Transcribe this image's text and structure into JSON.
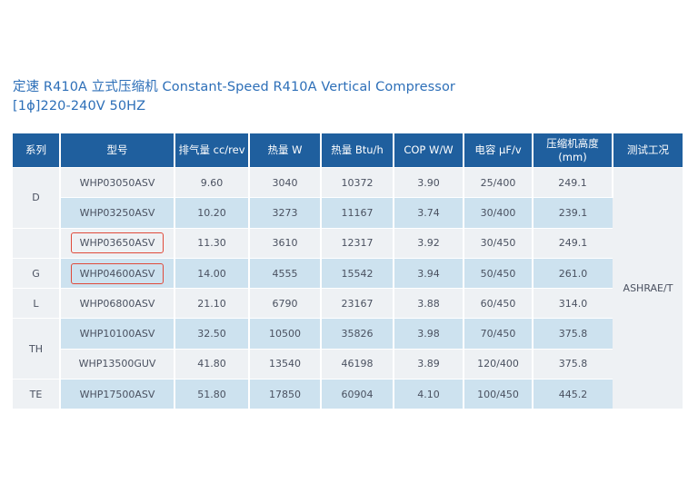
{
  "title": {
    "line1": "定速 R410A 立式压缩机 Constant-Speed R410A Vertical Compressor",
    "line2": "[1ϕ]220-240V 50HZ"
  },
  "table": {
    "headers": [
      "系列",
      "型号",
      "排气量 cc/rev",
      "热量 W",
      "热量 Btu/h",
      "COP W/W",
      "电容 μF/v",
      "压缩机高度\n(mm)",
      "测试工况"
    ],
    "header_height_line1": "压缩机高度",
    "header_height_line2": "(mm)",
    "condition": "ASHRAE/T",
    "series": [
      "D",
      "G",
      "L",
      "TH",
      "TE"
    ],
    "rows": [
      [
        "WHP03050ASV",
        "9.60",
        "3040",
        "10372",
        "3.90",
        "25/400",
        "249.1"
      ],
      [
        "WHP03250ASV",
        "10.20",
        "3273",
        "11167",
        "3.74",
        "30/400",
        "239.1"
      ],
      [
        "WHP03650ASV",
        "11.30",
        "3610",
        "12317",
        "3.92",
        "30/450",
        "249.1"
      ],
      [
        "WHP04600ASV",
        "14.00",
        "4555",
        "15542",
        "3.94",
        "50/450",
        "261.0"
      ],
      [
        "WHP06800ASV",
        "21.10",
        "6790",
        "23167",
        "3.88",
        "60/450",
        "314.0"
      ],
      [
        "WHP10100ASV",
        "32.50",
        "10500",
        "35826",
        "3.98",
        "70/450",
        "375.8"
      ],
      [
        "WHP13500GUV",
        "41.80",
        "13540",
        "46198",
        "3.89",
        "120/400",
        "375.8"
      ],
      [
        "WHP17500ASV",
        "51.80",
        "17850",
        "60904",
        "4.10",
        "100/450",
        "445.2"
      ]
    ],
    "highlighted_models": [
      "WHP03650ASV",
      "WHP04600ASV"
    ],
    "highlight_color": "#e04a3a"
  }
}
